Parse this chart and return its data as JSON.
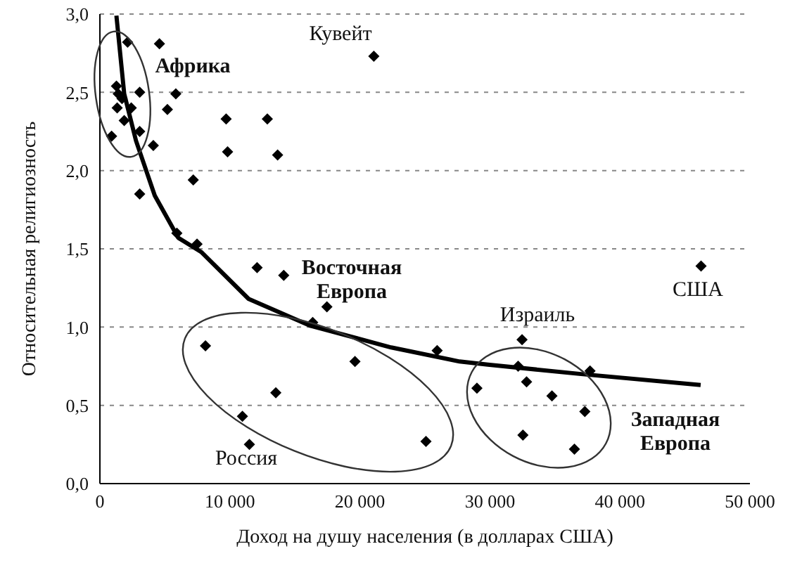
{
  "chart_data": {
    "type": "scatter",
    "xlabel": "Доход на душу населения (в долларах США)",
    "ylabel": "Относительная религиозность",
    "xlim": [
      0,
      50000
    ],
    "xticks": [
      {
        "value": 0,
        "label": "0"
      },
      {
        "value": 10000,
        "label": "10 000"
      },
      {
        "value": 20000,
        "label": "20 000"
      },
      {
        "value": 30000,
        "label": "30 000"
      },
      {
        "value": 40000,
        "label": "40 000"
      },
      {
        "value": 50000,
        "label": "50 000"
      }
    ],
    "ylim": [
      0,
      3
    ],
    "yticks": [
      {
        "value": 0,
        "label": "0,0"
      },
      {
        "value": 0.5,
        "label": "0,5"
      },
      {
        "value": 1,
        "label": "1,0"
      },
      {
        "value": 1.5,
        "label": "1,5"
      },
      {
        "value": 2,
        "label": "2,0"
      },
      {
        "value": 2.5,
        "label": "2,5"
      },
      {
        "value": 3,
        "label": "3,0"
      }
    ],
    "grid": "y",
    "marker": "diamond",
    "series": [
      {
        "color": "#000000",
        "x": [
          2130,
          4580,
          1270,
          1410,
          1700,
          3060,
          5840,
          1330,
          2410,
          5190,
          1870,
          9710,
          12880,
          900,
          3060,
          4110,
          9820,
          13670,
          7180,
          3060,
          5920,
          7470,
          12090,
          14140,
          17460,
          16370,
          8120,
          19620,
          25940,
          13530,
          10960,
          11500,
          25080,
          32470,
          32170,
          37700,
          29000,
          32820,
          34770,
          37300,
          32540,
          36500,
          46240,
          21070
        ],
        "values": [
          2.82,
          2.81,
          2.54,
          2.49,
          2.46,
          2.5,
          2.49,
          2.4,
          2.4,
          2.39,
          2.32,
          2.33,
          2.33,
          2.22,
          2.25,
          2.16,
          2.12,
          2.1,
          1.94,
          1.85,
          1.6,
          1.53,
          1.38,
          1.33,
          1.13,
          1.03,
          0.88,
          0.78,
          0.85,
          0.58,
          0.43,
          0.25,
          0.27,
          0.92,
          0.75,
          0.72,
          0.61,
          0.65,
          0.56,
          0.46,
          0.31,
          0.22,
          1.39,
          2.73
        ]
      },
      {
        "type": "line",
        "color": "#000000",
        "marker": "none",
        "x": [
          1270,
          1870,
          2780,
          4220,
          6030,
          7790,
          11440,
          16130,
          22400,
          27670,
          29840,
          37010,
          46210
        ],
        "values": [
          2.99,
          2.49,
          2.19,
          1.84,
          1.57,
          1.48,
          1.18,
          1.01,
          0.87,
          0.78,
          0.76,
          0.7,
          0.63
        ]
      }
    ],
    "annotations": [
      "Африка",
      "Кувейт",
      "Восточная Европа",
      "Израиль",
      "США",
      "Россия",
      "Западная Европа"
    ]
  }
}
